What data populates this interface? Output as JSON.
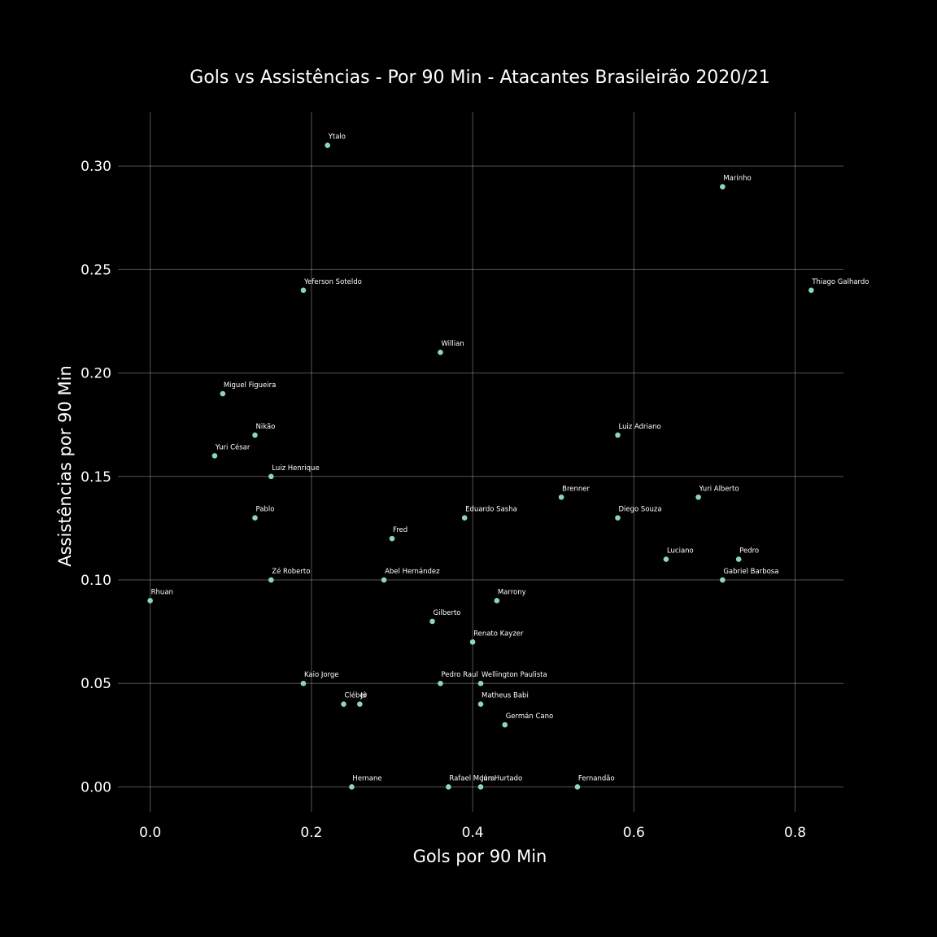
{
  "chart_data": {
    "type": "scatter",
    "title": "Gols vs Assistências - Por 90 Min - Atacantes Brasileirão 2020/21",
    "xlabel": "Gols por 90 Min",
    "ylabel": "Assistências por 90 Min",
    "xlim": [
      -0.04,
      0.86
    ],
    "ylim": [
      -0.012,
      0.326
    ],
    "xticks": [
      0.0,
      0.2,
      0.4,
      0.6,
      0.8
    ],
    "xtick_labels": [
      "0.0",
      "0.2",
      "0.4",
      "0.6",
      "0.8"
    ],
    "yticks": [
      0.0,
      0.05,
      0.1,
      0.15,
      0.2,
      0.25,
      0.3
    ],
    "ytick_labels": [
      "0.00",
      "0.05",
      "0.10",
      "0.15",
      "0.20",
      "0.25",
      "0.30"
    ],
    "grid": true,
    "background": "#000000",
    "point_color": "#8dd3c7",
    "points": [
      {
        "label": "Ytalo",
        "x": 0.22,
        "y": 0.31
      },
      {
        "label": "Marinho",
        "x": 0.71,
        "y": 0.29
      },
      {
        "label": "Yeferson Soteldo",
        "x": 0.19,
        "y": 0.24
      },
      {
        "label": "Thiago Galhardo",
        "x": 0.82,
        "y": 0.24
      },
      {
        "label": "Willian",
        "x": 0.36,
        "y": 0.21
      },
      {
        "label": "Miguel Figueira",
        "x": 0.09,
        "y": 0.19
      },
      {
        "label": "Nikão",
        "x": 0.13,
        "y": 0.17
      },
      {
        "label": "Luiz Adriano",
        "x": 0.58,
        "y": 0.17
      },
      {
        "label": "Yuri César",
        "x": 0.08,
        "y": 0.16
      },
      {
        "label": "Luiz Henrique",
        "x": 0.15,
        "y": 0.15
      },
      {
        "label": "Brenner",
        "x": 0.51,
        "y": 0.14
      },
      {
        "label": "Yuri Alberto",
        "x": 0.68,
        "y": 0.14
      },
      {
        "label": "Pablo",
        "x": 0.13,
        "y": 0.13
      },
      {
        "label": "Eduardo Sasha",
        "x": 0.39,
        "y": 0.13
      },
      {
        "label": "Diego Souza",
        "x": 0.58,
        "y": 0.13
      },
      {
        "label": "Fred",
        "x": 0.3,
        "y": 0.12
      },
      {
        "label": "Luciano",
        "x": 0.64,
        "y": 0.11
      },
      {
        "label": "Pedro",
        "x": 0.73,
        "y": 0.11
      },
      {
        "label": "Zé Roberto",
        "x": 0.15,
        "y": 0.1
      },
      {
        "label": "Abel Hernández",
        "x": 0.29,
        "y": 0.1
      },
      {
        "label": "Gabriel Barbosa",
        "x": 0.71,
        "y": 0.1
      },
      {
        "label": "Rhuan",
        "x": 0.0,
        "y": 0.09
      },
      {
        "label": "Marrony",
        "x": 0.43,
        "y": 0.09
      },
      {
        "label": "Gilberto",
        "x": 0.35,
        "y": 0.08
      },
      {
        "label": "Renato Kayzer",
        "x": 0.4,
        "y": 0.07
      },
      {
        "label": "Kaio Jorge",
        "x": 0.19,
        "y": 0.05
      },
      {
        "label": "Pedro Raul",
        "x": 0.36,
        "y": 0.05
      },
      {
        "label": "Wellington Paulista",
        "x": 0.41,
        "y": 0.05
      },
      {
        "label": "Cléber",
        "x": 0.24,
        "y": 0.04
      },
      {
        "label": "Jô",
        "x": 0.26,
        "y": 0.04
      },
      {
        "label": "Matheus Babi",
        "x": 0.41,
        "y": 0.04
      },
      {
        "label": "Germán Cano",
        "x": 0.44,
        "y": 0.03
      },
      {
        "label": "Hernane",
        "x": 0.25,
        "y": 0.0
      },
      {
        "label": "Rafael Moura",
        "x": 0.37,
        "y": 0.0
      },
      {
        "label": "Ján Hurtado",
        "x": 0.41,
        "y": 0.0
      },
      {
        "label": "Fernandão",
        "x": 0.53,
        "y": 0.0
      }
    ]
  }
}
